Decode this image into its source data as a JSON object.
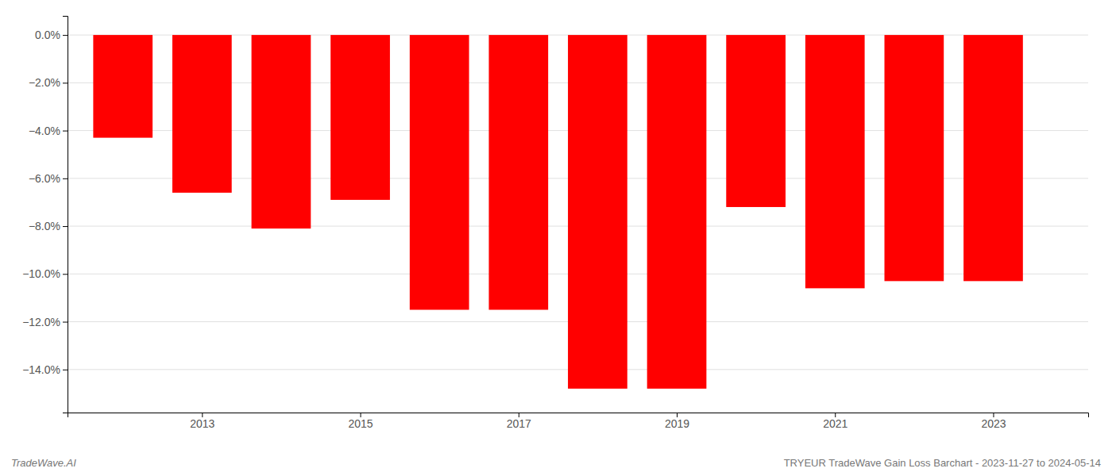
{
  "chart_data": {
    "type": "bar",
    "x": [
      2012,
      2013,
      2014,
      2015,
      2016,
      2017,
      2018,
      2019,
      2020,
      2021,
      2022,
      2023
    ],
    "values": [
      -4.3,
      -6.6,
      -8.1,
      -6.9,
      -11.5,
      -11.5,
      -14.8,
      -14.8,
      -7.2,
      -10.6,
      -10.3,
      -10.3
    ],
    "color": "#ff0000",
    "xlim": [
      2011.3,
      2024.2
    ],
    "xticks": [
      2013,
      2015,
      2017,
      2019,
      2021,
      2023
    ],
    "ylim": [
      -15.8,
      0.8
    ],
    "yticks": [
      {
        "value": 0.0,
        "label": "0.0%"
      },
      {
        "value": -2.0,
        "label": "−2.0%"
      },
      {
        "value": -4.0,
        "label": "−4.0%"
      },
      {
        "value": -6.0,
        "label": "−6.0%"
      },
      {
        "value": -8.0,
        "label": "−8.0%"
      },
      {
        "value": -10.0,
        "label": "−10.0%"
      },
      {
        "value": -12.0,
        "label": "−12.0%"
      },
      {
        "value": -14.0,
        "label": "−14.0%"
      }
    ],
    "grid": true,
    "annotations": [
      "TradeWave.AI",
      "TRYEUR TradeWave Gain Loss Barchart - 2023-11-27 to 2024-05-14"
    ]
  }
}
